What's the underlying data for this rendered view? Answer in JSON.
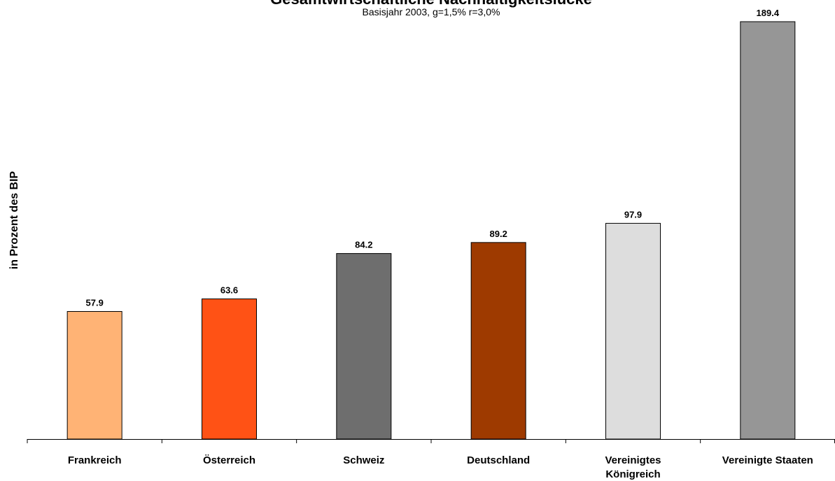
{
  "chart_data": {
    "type": "bar",
    "title": "Gesamtwirtschaftliche Nachhaltigkeitslücke",
    "subtitle": "Basisjahr 2003, g=1,5% r=3,0%",
    "ylabel": "in Prozent des BIP",
    "xlabel": "",
    "ylim": [
      0,
      189.4
    ],
    "grid": false,
    "legend": "none",
    "categories": [
      [
        "Frankreich"
      ],
      [
        "Österreich"
      ],
      [
        "Schweiz"
      ],
      [
        "Deutschland"
      ],
      [
        "Vereinigtes",
        "Königreich"
      ],
      [
        "Vereinigte Staaten"
      ]
    ],
    "values": [
      57.9,
      63.6,
      84.2,
      89.2,
      97.9,
      189.4
    ],
    "value_labels": [
      "57.9",
      "63.6",
      "84.2",
      "89.2",
      "97.9",
      "189.4"
    ],
    "colors": [
      "#FFB375",
      "#FF5215",
      "#6E6E6E",
      "#9E3A00",
      "#DDDDDD",
      "#969696"
    ]
  }
}
